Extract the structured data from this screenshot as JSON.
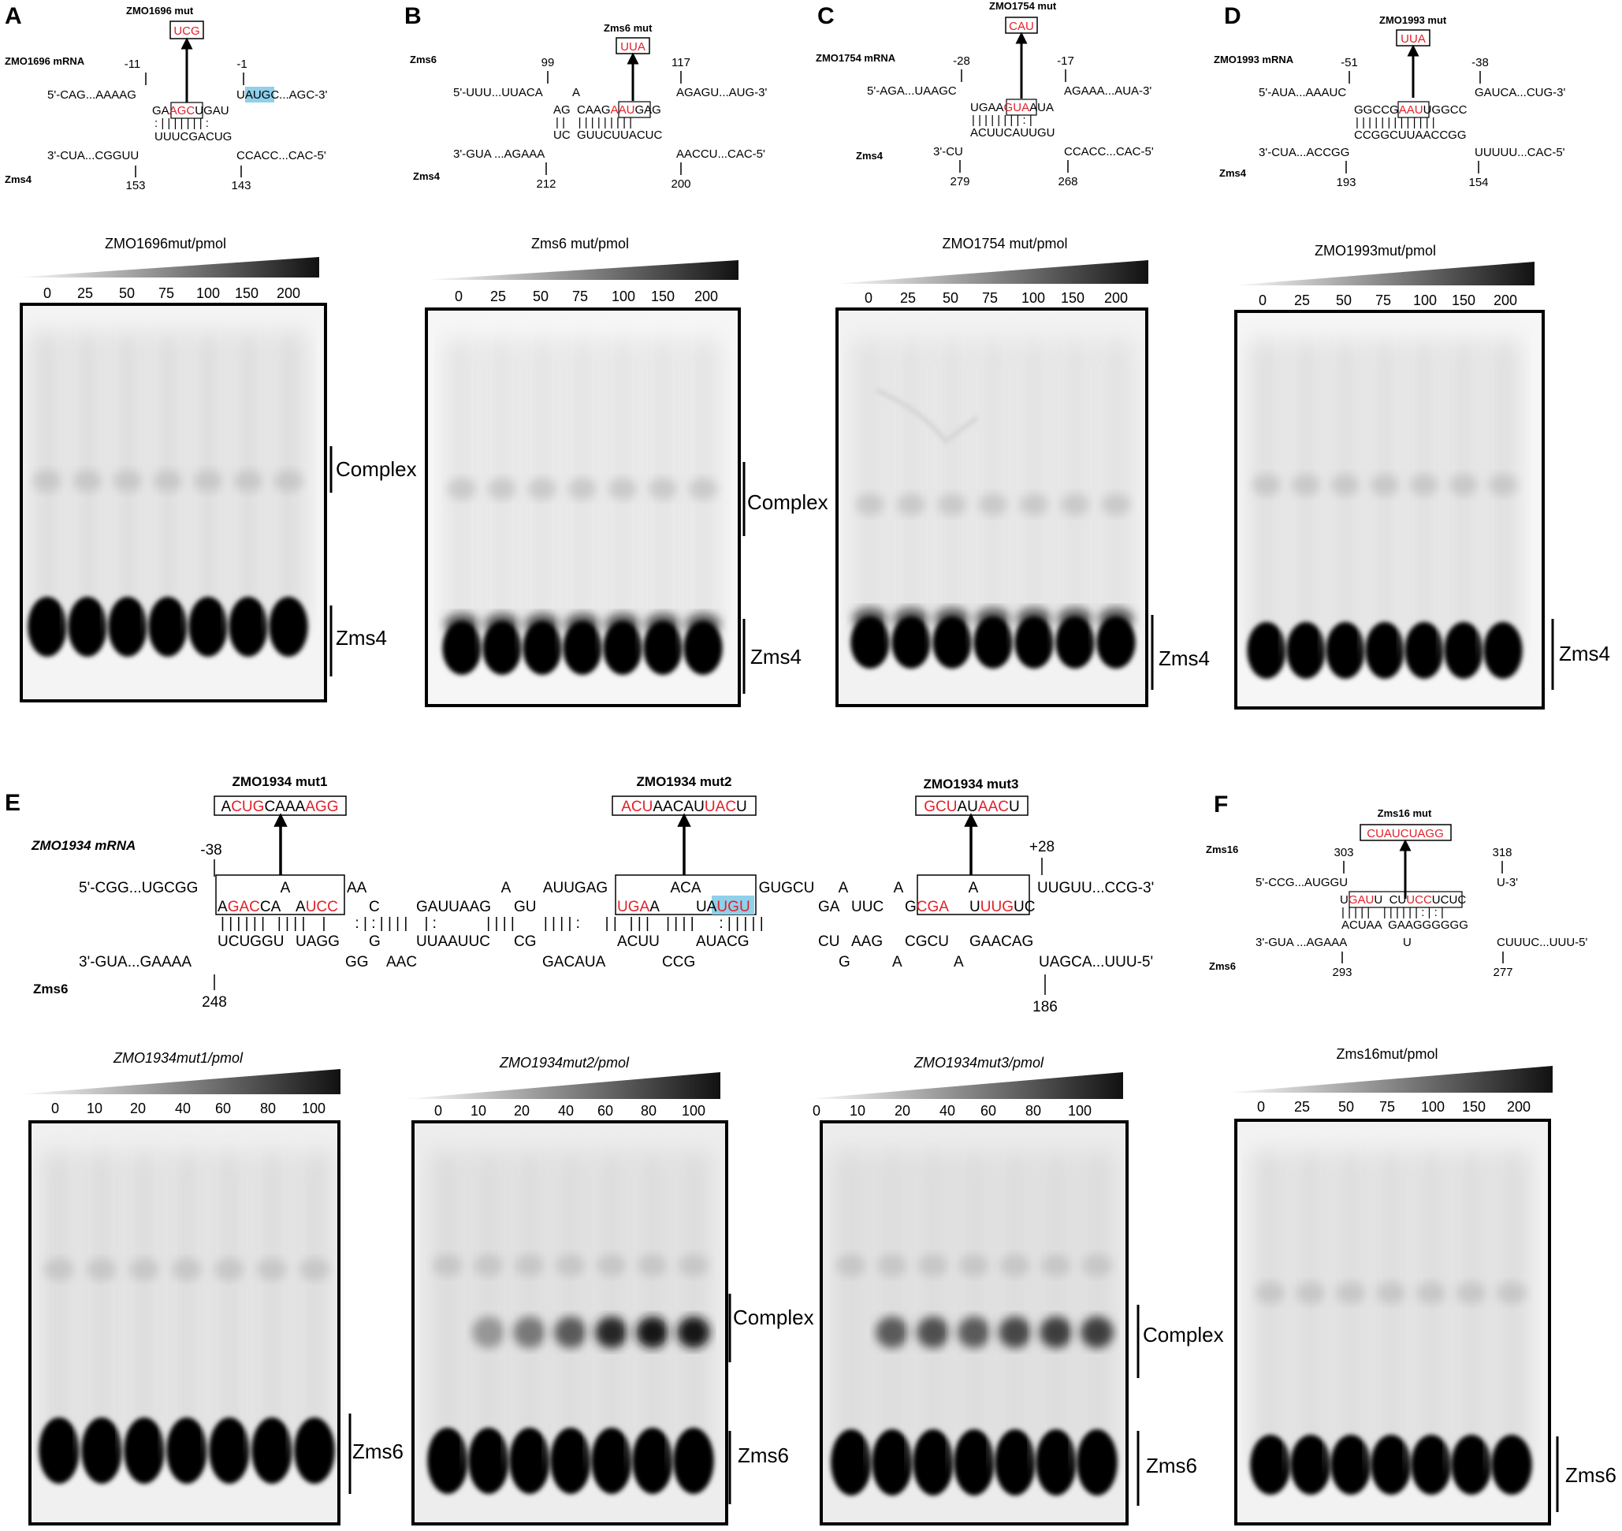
{
  "panels": [
    {
      "letter": "A",
      "mut_name": "ZMO1696 mut",
      "mut_seq": "UCG",
      "mrna_label": "ZMO1696 mRNA",
      "srna_label": "Zms4",
      "pos_top": [
        "-11",
        "-1"
      ],
      "pos_bottom": [
        "153",
        "143"
      ],
      "mrna_5": "5'-CAG...AAAAG",
      "mrna_3": "UAUGC...AGC-3'",
      "pair_top": "GAAGCUGAU",
      "pair_bottom": "UUUCGACUG",
      "srna_3": "3'-CUA...CGGUU",
      "srna_5": "CCACC...CAC-5'",
      "gel_title": "ZMO1696mut/pmol",
      "ticks": [
        "0",
        "25",
        "50",
        "75",
        "100",
        "150",
        "200"
      ],
      "bands": [
        "Complex",
        "Zms4"
      ]
    },
    {
      "letter": "B",
      "mut_name": "Zms6 mut",
      "mut_seq": "UUA",
      "mrna_label": "Zms6",
      "srna_label": "Zms4",
      "pos_top": [
        "99",
        "117"
      ],
      "pos_bottom": [
        "212",
        "200"
      ],
      "mrna_5": "5'-UUU...UUACA",
      "bulge": "A",
      "mrna_3": "AGAGU...AUG-3'",
      "pair_top": "AG  CAAGAAUGAG",
      "pair_bottom": "UC  GUUCUUACUC",
      "srna_3": "3'-GUA ...AGAAA",
      "srna_5": "AACCU...CAC-5'",
      "gel_title": "Zms6 mut/pmol",
      "ticks": [
        "0",
        "25",
        "50",
        "75",
        "100",
        "150",
        "200"
      ],
      "bands": [
        "Complex",
        "Zms4"
      ]
    },
    {
      "letter": "C",
      "mut_name": "ZMO1754 mut",
      "mut_seq": "CAU",
      "mrna_label": "ZMO1754 mRNA",
      "srna_label": "Zms4",
      "pos_top": [
        "-28",
        "-17"
      ],
      "pos_bottom": [
        "279",
        "268"
      ],
      "mrna_5": "5'-AGA...UAAGC",
      "mrna_3": "AGAAA...AUA-3'",
      "pair_top": "UGAAGUAAUA",
      "pair_bottom": "ACUUCAUUGU",
      "srna_3": "3'-CU",
      "srna_5": "CCACC...CAC-5'",
      "gel_title": "ZMO1754 mut/pmol",
      "ticks": [
        "0",
        "25",
        "50",
        "75",
        "100",
        "150",
        "200"
      ],
      "bands": [
        "Zms4"
      ]
    },
    {
      "letter": "D",
      "mut_name": "ZMO1993 mut",
      "mut_seq": "UUA",
      "mrna_label": "ZMO1993 mRNA",
      "srna_label": "Zms4",
      "pos_top": [
        "-51",
        "-38"
      ],
      "pos_bottom": [
        "193",
        "154"
      ],
      "mrna_5": "5'-AUA...AAAUC",
      "mrna_3": "GAUCA...CUG-3'",
      "pair_top": "GGCCGAAUUGGCC",
      "pair_bottom": "CCGGCUUAACCGG",
      "srna_3": "3'-CUA...ACCGG",
      "srna_5": "UUUUU...CAC-5'",
      "gel_title": "ZMO1993mut/pmol",
      "ticks": [
        "0",
        "25",
        "50",
        "75",
        "100",
        "150",
        "200"
      ],
      "bands": [
        "Zms4"
      ]
    },
    {
      "letter": "E",
      "mrna_label": "ZMO1934 mRNA",
      "srna_label": "Zms6",
      "muts": [
        {
          "name": "ZMO1934 mut1",
          "seq": "ACUGCAAAAGG"
        },
        {
          "name": "ZMO1934 mut2",
          "seq": "ACUAACAUUACU"
        },
        {
          "name": "ZMO1934 mut3",
          "seq": "GCUAUAACU"
        }
      ],
      "pos_top": [
        "-38",
        "+28"
      ],
      "pos_bottom": [
        "248",
        "186"
      ],
      "row_top_loops": [
        "A",
        "AA",
        "A",
        "AUUGAG",
        "ACA",
        "GUGCU",
        "A",
        "A",
        "A"
      ],
      "mrna_5": "5'-CGG...UGCGG",
      "mrna_3": "UUGUU...CCG-3'",
      "row_mrna": [
        "AGACCA",
        "AUCC",
        "C",
        "GAUUAAG",
        "GU",
        "UGAA",
        "UAUGU",
        "GA",
        "UUC",
        "GCGA",
        "UUUGUC"
      ],
      "row_srna": [
        "UCUGGU",
        "UAGG",
        "G",
        "UUAAUUC",
        "CG",
        "ACUU",
        "AUACG",
        "CU",
        "AAG",
        "CGCU",
        "GAACAG"
      ],
      "row_bottom_loops": [
        "GG",
        "AAC",
        "GACAUA",
        "CCG",
        "G",
        "A",
        "A"
      ],
      "srna_3": "3'-GUA...GAAAA",
      "srna_5": "UAGCA...UUU-5'",
      "gels": [
        {
          "title": "ZMO1934mut1/pmol",
          "ticks": [
            "0",
            "10",
            "20",
            "40",
            "60",
            "80",
            "100"
          ],
          "bands": [
            "Zms6"
          ]
        },
        {
          "title": "ZMO1934mut2/pmol",
          "ticks": [
            "0",
            "10",
            "20",
            "40",
            "60",
            "80",
            "100"
          ],
          "bands": [
            "Complex",
            "Zms6"
          ]
        },
        {
          "title": "ZMO1934mut3/pmol",
          "ticks": [
            "0",
            "10",
            "20",
            "40",
            "60",
            "80",
            "100"
          ],
          "bands": [
            "Complex",
            "Zms6"
          ]
        }
      ]
    },
    {
      "letter": "F",
      "mut_name": "Zms16 mut",
      "mut_seq": "CUAUCUAGG",
      "mrna_label": "Zms16",
      "srna_label": "Zms6",
      "pos_top": [
        "303",
        "318"
      ],
      "pos_bottom": [
        "293",
        "277"
      ],
      "mrna_5": "5'-CCG...AUGGU",
      "mrna_3": "U-3'",
      "pair_top": "UGAUU  CUUCCUCUC",
      "pair_bottom": "ACUAA  GAAGGGGGG",
      "bulge": "U",
      "srna_3": "3'-GUA ...AGAAA",
      "srna_5": "CUUUC...UUU-5'",
      "gel_title": "Zms16mut/pmol",
      "ticks": [
        "0",
        "25",
        "50",
        "75",
        "100",
        "150",
        "200"
      ],
      "bands": [
        "Zms6"
      ]
    }
  ]
}
